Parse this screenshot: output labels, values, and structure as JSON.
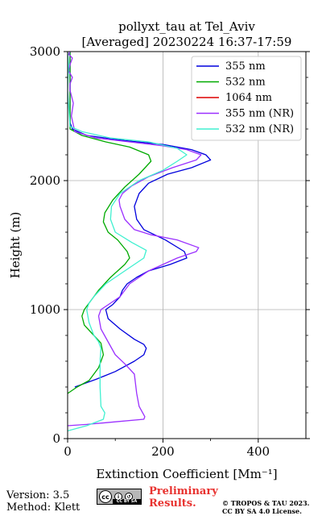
{
  "figure": {
    "version_text": "Version: 3.5",
    "method_text": "Method: Klett",
    "license_badge": "CC BY SA",
    "preliminary_text": "Preliminary\nResults.",
    "copyright_text": "© TROPOS & TAU 2023.\nCC BY SA 4.0 License.",
    "colors": {
      "prelim": "#e8322f"
    }
  },
  "chart_data": {
    "type": "line",
    "title": "pollyxt_tau at Tel_Aviv",
    "subtitle": "[Averaged] 20230224 16:37-17:59",
    "xlabel": "Extinction Coefficient [Mm⁻¹]",
    "ylabel": "Height (m)",
    "xlim": [
      0,
      500
    ],
    "ylim": [
      0,
      3000
    ],
    "xticks": [
      0,
      200,
      400
    ],
    "yticks": [
      0,
      1000,
      2000,
      3000
    ],
    "grid": true,
    "legend_position": "top-right",
    "series": [
      {
        "name": "355 nm",
        "color": "#0000dd",
        "x": [
          15,
          30,
          60,
          100,
          140,
          160,
          165,
          160,
          140,
          110,
          85,
          80,
          95,
          110,
          115,
          125,
          145,
          170,
          215,
          250,
          245,
          205,
          160,
          145,
          140,
          150,
          170,
          210,
          260,
          300,
          290,
          260,
          200,
          120,
          40,
          10,
          5,
          5
        ],
        "y": [
          400,
          420,
          460,
          520,
          600,
          650,
          700,
          730,
          770,
          850,
          930,
          1000,
          1040,
          1100,
          1150,
          1200,
          1250,
          1300,
          1350,
          1400,
          1450,
          1540,
          1620,
          1700,
          1800,
          1900,
          1980,
          2050,
          2100,
          2160,
          2200,
          2240,
          2280,
          2310,
          2350,
          2400,
          2450,
          3000
        ]
      },
      {
        "name": "532 nm",
        "color": "#00aa00",
        "x": [
          0,
          20,
          45,
          65,
          75,
          70,
          55,
          35,
          30,
          35,
          45,
          65,
          90,
          120,
          130,
          125,
          105,
          85,
          75,
          78,
          95,
          120,
          150,
          175,
          170,
          130,
          80,
          30,
          5,
          5
        ],
        "y": [
          350,
          400,
          450,
          550,
          650,
          740,
          800,
          880,
          950,
          1000,
          1050,
          1150,
          1250,
          1350,
          1400,
          1450,
          1540,
          1600,
          1680,
          1750,
          1850,
          1950,
          2050,
          2150,
          2200,
          2260,
          2300,
          2350,
          2400,
          3000
        ]
      },
      {
        "name": "1064 nm",
        "color": "#dd0000",
        "x": [],
        "y": []
      },
      {
        "name": "355 nm (NR)",
        "color": "#9b30ff",
        "x": [
          0,
          40,
          100,
          160,
          162,
          150,
          145,
          140,
          120,
          100,
          85,
          70,
          65,
          70,
          90,
          110,
          130,
          170,
          230,
          270,
          275,
          230,
          175,
          140,
          120,
          110,
          108,
          115,
          135,
          170,
          220,
          270,
          280,
          250,
          200,
          130,
          60,
          15,
          8,
          12,
          5,
          5,
          10,
          2,
          5,
          10,
          2,
          5
        ],
        "y": [
          100,
          110,
          130,
          150,
          170,
          250,
          350,
          500,
          580,
          650,
          750,
          850,
          950,
          1000,
          1050,
          1100,
          1200,
          1300,
          1400,
          1450,
          1480,
          1540,
          1580,
          1620,
          1700,
          1800,
          1850,
          1900,
          1960,
          2030,
          2100,
          2160,
          2200,
          2240,
          2270,
          2300,
          2330,
          2380,
          2500,
          2600,
          2700,
          2750,
          2800,
          2850,
          2900,
          2950,
          2980,
          3000
        ]
      },
      {
        "name": "532 nm (NR)",
        "color": "#40f0d0",
        "x": [
          0,
          40,
          75,
          78,
          70,
          68,
          68,
          68,
          70,
          65,
          55,
          45,
          40,
          45,
          55,
          80,
          120,
          160,
          165,
          135,
          100,
          90,
          92,
          110,
          150,
          200,
          230,
          250,
          230,
          170,
          90,
          30,
          5,
          0,
          2,
          0
        ],
        "y": [
          60,
          100,
          150,
          200,
          250,
          400,
          500,
          600,
          700,
          750,
          800,
          900,
          1000,
          1050,
          1100,
          1200,
          1300,
          1400,
          1460,
          1520,
          1600,
          1700,
          1800,
          1900,
          2000,
          2080,
          2150,
          2200,
          2250,
          2300,
          2330,
          2380,
          2420,
          2700,
          2900,
          3000
        ]
      }
    ]
  }
}
